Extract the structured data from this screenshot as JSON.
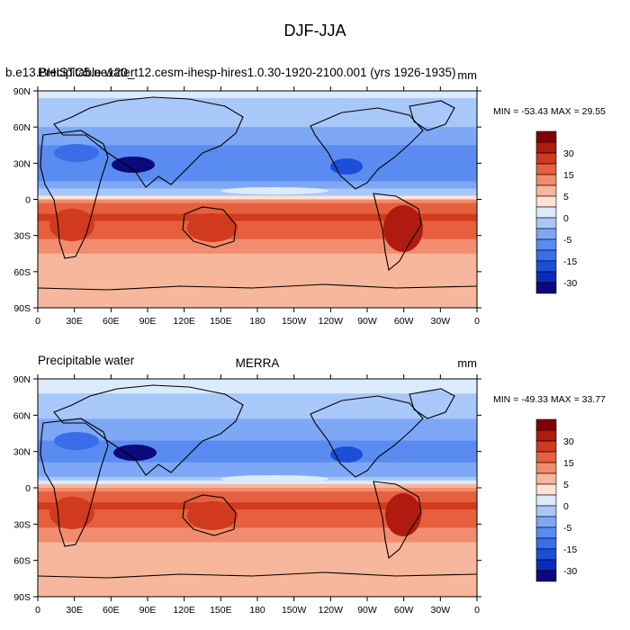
{
  "main_title": "DJF-JJA",
  "colors": {
    "palette": [
      "#0a0a7a",
      "#0b2ab8",
      "#1b4fd8",
      "#3a6ee8",
      "#5a8bf0",
      "#7ea8f5",
      "#a9c8fa",
      "#dcebfc",
      "#fde3d3",
      "#f7b79c",
      "#f18d6e",
      "#e6603f",
      "#d13a1e",
      "#b11a0f",
      "#800000"
    ],
    "land_outline": "#000000"
  },
  "colorbar": {
    "labels": [
      "30",
      "15",
      "5",
      "0",
      "-5",
      "-15",
      "-30"
    ]
  },
  "axes": {
    "lon_ticks": [
      "0",
      "30E",
      "60E",
      "90E",
      "120E",
      "150E",
      "180",
      "150W",
      "120W",
      "90W",
      "60W",
      "30W",
      "0"
    ],
    "lat_ticks": [
      "90N",
      "60N",
      "30N",
      "0",
      "30S",
      "60S",
      "90S"
    ]
  },
  "panels": [
    {
      "left_title": "b.e13.BHISTC5.ne120_t12.cesm-ihesp-hires1.0.30-1920-2100.001 (yrs 1926-1935)",
      "left_title_overlay": "Precipitable water",
      "center_title": "",
      "units": "mm",
      "stats": "MIN = -53.43 MAX =  29.55"
    },
    {
      "left_title": "Precipitable water",
      "left_title_overlay": "",
      "center_title": "MERRA",
      "units": "mm",
      "stats": "MIN = -49.33 MAX =  33.77"
    }
  ],
  "chart_data": [
    {
      "type": "heatmap",
      "title": "DJF-JJA",
      "subtitle": "b.e13.BHISTC5.ne120_t12.cesm-ihesp-hires1.0.30-1920-2100.001 (yrs 1926-1935)",
      "variable": "Precipitable water",
      "units": "mm",
      "min": -53.43,
      "max": 29.55,
      "contour_levels": [
        -40,
        -35,
        -30,
        -25,
        -20,
        -15,
        -10,
        -5,
        0,
        5,
        10,
        15,
        20,
        25,
        30,
        35
      ],
      "x_range": [
        0,
        360
      ],
      "y_range": [
        -90,
        90
      ],
      "lat_band_values": {
        "lat": [
          90,
          75,
          60,
          45,
          30,
          15,
          5,
          0,
          -5,
          -15,
          -30,
          -45,
          -60,
          -75,
          -90
        ],
        "value": [
          -8,
          -12,
          -15,
          -20,
          -22,
          -20,
          -12,
          5,
          12,
          16,
          12,
          5,
          3,
          1,
          0
        ]
      }
    },
    {
      "type": "heatmap",
      "title": "DJF-JJA",
      "subtitle": "MERRA",
      "variable": "Precipitable water",
      "units": "mm",
      "min": -49.33,
      "max": 33.77,
      "contour_levels": [
        -40,
        -35,
        -30,
        -25,
        -20,
        -15,
        -10,
        -5,
        0,
        5,
        10,
        15,
        20,
        25,
        30,
        35
      ],
      "x_range": [
        0,
        360
      ],
      "y_range": [
        -90,
        90
      ],
      "lat_band_values": {
        "lat": [
          90,
          75,
          60,
          45,
          30,
          15,
          5,
          0,
          -5,
          -15,
          -30,
          -45,
          -60,
          -75,
          -90
        ],
        "value": [
          -7,
          -11,
          -14,
          -19,
          -21,
          -19,
          -11,
          5,
          12,
          16,
          12,
          5,
          3,
          1,
          0
        ]
      }
    }
  ]
}
